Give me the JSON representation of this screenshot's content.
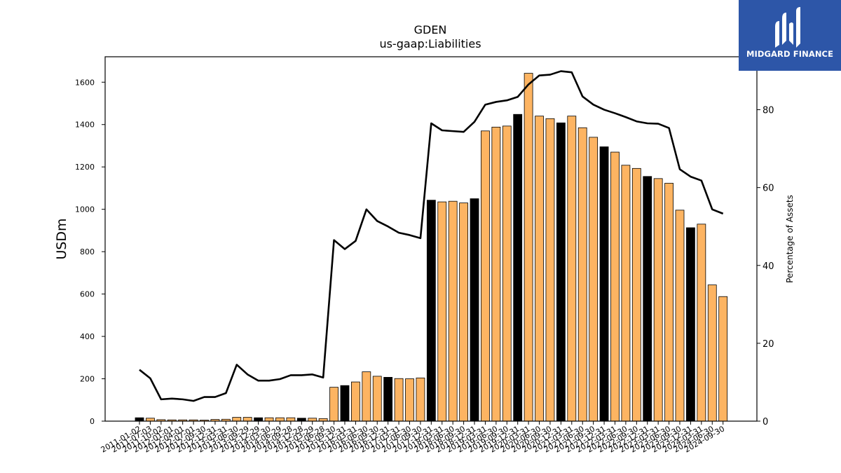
{
  "chart_data": {
    "type": "bar",
    "title": "GDEN",
    "subtitle": "us-gaap:Liabilities",
    "ylabel": "USDm",
    "y2label": "Percentage of Assets",
    "ylim": [
      0,
      1720
    ],
    "y2lim": [
      0,
      93.6
    ],
    "yticks": [
      0,
      200,
      400,
      600,
      800,
      1000,
      1200,
      1400,
      1600
    ],
    "y2ticks": [
      0,
      20,
      40,
      60,
      80
    ],
    "colors": {
      "bar": "#FDB462",
      "highlight_bar": "#000000",
      "line": "#000000"
    },
    "x_tick_labels": [
      "2011-01-02",
      "2011-07-03",
      "2011-10-02",
      "2012-01-01",
      "2012-04-01",
      "2012-07-01",
      "2012-09-30",
      "2012-12-31",
      "2013-03-31",
      "2013-06-30",
      "2013-09-29",
      "2013-12-29",
      "2014-03-30",
      "2014-06-29",
      "2014-09-28",
      "2014-12-28",
      "2015-03-29",
      "2015-06-28",
      "2015-09-30",
      "2015-12-31",
      "2016-03-31",
      "2016-06-30",
      "2016-09-30",
      "2016-12-31",
      "2017-03-31",
      "2017-06-30",
      "2017-09-30",
      "2017-12-31",
      "2018-03-31",
      "2018-06-30",
      "2018-09-30",
      "2018-12-31",
      "2019-03-31",
      "2019-06-30",
      "2019-09-30",
      "2019-12-31",
      "2020-03-31",
      "2020-06-30",
      "2020-09-30",
      "2020-12-31",
      "2021-03-31",
      "2021-06-30",
      "2021-09-30",
      "2021-12-31",
      "2022-03-31",
      "2022-06-30",
      "2022-09-30",
      "2022-12-31",
      "2023-03-31",
      "2023-06-30",
      "2023-09-30",
      "2023-12-31",
      "2024-03-31",
      "2024-06-30",
      "2024-09-30"
    ],
    "values": [
      16,
      14,
      7,
      6,
      6,
      6,
      5,
      8,
      9,
      18,
      18,
      16,
      16,
      16,
      16,
      14,
      14,
      12,
      160,
      168,
      185,
      233,
      212,
      207,
      201,
      200,
      204,
      1043,
      1035,
      1038,
      1030,
      1050,
      1370,
      1388,
      1393,
      1448,
      1642,
      1440,
      1428,
      1408,
      1440,
      1385,
      1340,
      1295,
      1270,
      1208,
      1193,
      1155,
      1145,
      1123,
      996,
      913,
      930,
      643,
      588
    ],
    "highlight": [
      true,
      false,
      false,
      false,
      false,
      false,
      false,
      false,
      false,
      false,
      false,
      true,
      false,
      false,
      false,
      true,
      false,
      false,
      false,
      true,
      false,
      false,
      false,
      true,
      false,
      false,
      false,
      true,
      false,
      false,
      false,
      true,
      false,
      false,
      false,
      true,
      false,
      false,
      false,
      true,
      false,
      false,
      false,
      true,
      false,
      false,
      false,
      true,
      false,
      false,
      false,
      true,
      false,
      false,
      false
    ],
    "percentage_of_assets": [
      13.2,
      11.0,
      5.6,
      5.8,
      5.6,
      5.2,
      6.2,
      6.2,
      7.2,
      14.5,
      12.0,
      10.4,
      10.4,
      10.8,
      11.8,
      11.8,
      12.0,
      11.2,
      46.5,
      44.2,
      46.3,
      54.4,
      51.4,
      50.0,
      48.4,
      47.8,
      47.0,
      76.5,
      74.7,
      74.5,
      74.3,
      76.9,
      81.3,
      82.0,
      82.4,
      83.3,
      86.5,
      88.8,
      89.0,
      89.9,
      89.6,
      83.4,
      81.3,
      80.0,
      79.1,
      78.1,
      77.0,
      76.5,
      76.4,
      75.3,
      64.7,
      62.8,
      61.8,
      54.4,
      53.3
    ]
  },
  "logo": {
    "text": "MIDGARD FINANCE"
  }
}
